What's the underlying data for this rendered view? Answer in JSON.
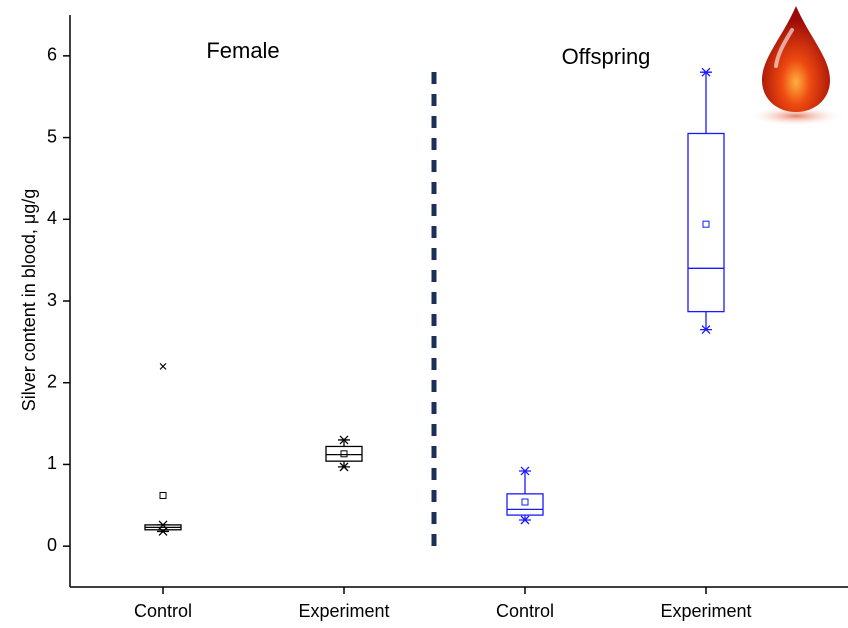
{
  "chart_data": {
    "type": "box",
    "y_label": "Silver content in blood, μg/g",
    "annotations": [
      "Female",
      "Offspring"
    ],
    "categories": [
      "Control",
      "Experiment",
      "Control",
      "Experiment"
    ],
    "boxes": [
      {
        "color": "#000000",
        "min": 0.18,
        "q1": 0.2,
        "median": 0.23,
        "q3": 0.26,
        "max": 0.26,
        "mean": 0.62,
        "outliers": [
          2.2
        ]
      },
      {
        "color": "#000000",
        "min": 0.97,
        "q1": 1.04,
        "median": 1.12,
        "q3": 1.22,
        "max": 1.3,
        "mean": 1.13,
        "outliers": []
      },
      {
        "color": "#1a1aff",
        "min": 0.32,
        "q1": 0.38,
        "median": 0.45,
        "q3": 0.64,
        "max": 0.92,
        "mean": 0.54,
        "outliers": []
      },
      {
        "color": "#1a1aff",
        "min": 2.65,
        "q1": 2.87,
        "median": 3.4,
        "q3": 5.05,
        "max": 5.8,
        "mean": 3.94,
        "outliers": []
      }
    ],
    "ylim": [
      -0.5,
      6.5
    ],
    "yticks": [
      0,
      1,
      2,
      3,
      4,
      5,
      6
    ]
  }
}
